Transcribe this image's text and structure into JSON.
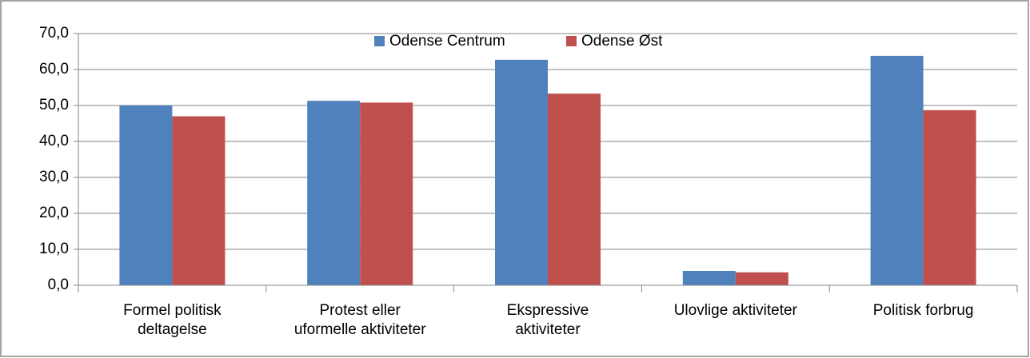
{
  "chart_data": {
    "type": "bar",
    "categories": [
      [
        "Formel politisk",
        "deltagelse"
      ],
      [
        "Protest eller",
        "uformelle aktiviteter"
      ],
      [
        "Ekspressive",
        "aktiviteter"
      ],
      [
        "Ulovlige aktiviteter"
      ],
      [
        "Politisk forbrug"
      ]
    ],
    "series": [
      {
        "name": "Odense Centrum",
        "color": "#4f81bd",
        "values": [
          50.0,
          51.3,
          62.7,
          4.0,
          63.8
        ]
      },
      {
        "name": "Odense Øst",
        "color": "#c0504d",
        "values": [
          47.0,
          50.8,
          53.3,
          3.6,
          48.7
        ]
      }
    ],
    "ylim": [
      0,
      70
    ],
    "yticks": [
      {
        "value": 0,
        "label": "0,0"
      },
      {
        "value": 10,
        "label": "10,0"
      },
      {
        "value": 20,
        "label": "20,0"
      },
      {
        "value": 30,
        "label": "30,0"
      },
      {
        "value": 40,
        "label": "40,0"
      },
      {
        "value": 50,
        "label": "50,0"
      },
      {
        "value": 60,
        "label": "60,0"
      },
      {
        "value": 70,
        "label": "70,0"
      }
    ],
    "grid": true,
    "legend": "top"
  }
}
